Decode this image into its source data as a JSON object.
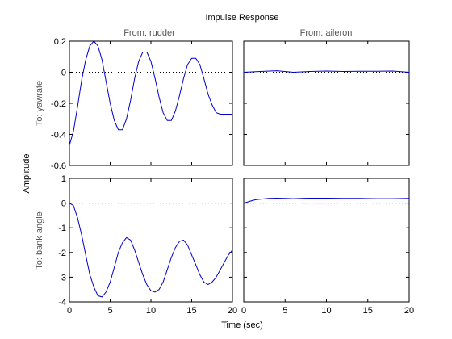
{
  "chart_data": {
    "type": "line",
    "title": "Impulse Response",
    "xlabel": "Time (sec)",
    "ylabel": "Amplitude",
    "column_titles": [
      "From: rudder",
      "From: aileron"
    ],
    "row_titles": [
      "To: yawrate",
      "To: bank angle"
    ],
    "grid": false,
    "line_color": "#0000cc",
    "zero_line_style": "dotted",
    "xlim": [
      0,
      20
    ],
    "xticks": [
      0,
      5,
      10,
      15,
      20
    ],
    "rows": [
      {
        "ylim": [
          -0.6,
          0.2
        ],
        "yticks": [
          -0.6,
          -0.4,
          -0.2,
          0,
          0.2
        ],
        "ytick_labels": [
          "-0.6",
          "-0.4",
          "-0.2",
          "0",
          "0.2"
        ]
      },
      {
        "ylim": [
          -4,
          1
        ],
        "yticks": [
          -4,
          -3,
          -2,
          -1,
          0,
          1
        ],
        "ytick_labels": [
          "-4",
          "-3",
          "-2",
          "-1",
          "0",
          "1"
        ]
      }
    ],
    "panels": [
      {
        "name": "rudder-to-yawrate",
        "row": 0,
        "col": 0,
        "series": [
          {
            "x": [
              0,
              0.5,
              1,
              1.5,
              2,
              2.5,
              3,
              3.5,
              4,
              4.5,
              5,
              5.5,
              6,
              6.5,
              7,
              7.5,
              8,
              8.5,
              9,
              9.5,
              10,
              10.5,
              11,
              11.5,
              12,
              12.5,
              13,
              13.5,
              14,
              14.5,
              15,
              15.5,
              16,
              16.5,
              17,
              17.5,
              18,
              18.5,
              19,
              19.5,
              20
            ],
            "y": [
              -0.47,
              -0.38,
              -0.22,
              -0.05,
              0.08,
              0.17,
              0.2,
              0.17,
              0.08,
              -0.06,
              -0.2,
              -0.31,
              -0.37,
              -0.37,
              -0.3,
              -0.18,
              -0.04,
              0.07,
              0.13,
              0.13,
              0.07,
              -0.04,
              -0.16,
              -0.26,
              -0.31,
              -0.31,
              -0.25,
              -0.15,
              -0.04,
              0.05,
              0.09,
              0.09,
              0.05,
              -0.04,
              -0.14,
              -0.21,
              -0.26,
              -0.27,
              -0.27,
              -0.27,
              -0.27
            ]
          }
        ]
      },
      {
        "name": "aileron-to-yawrate",
        "row": 0,
        "col": 1,
        "series": [
          {
            "x": [
              0,
              2,
              4,
              6,
              8,
              10,
              12,
              14,
              16,
              18,
              20
            ],
            "y": [
              0.0,
              0.005,
              0.01,
              0.0,
              0.005,
              0.008,
              0.005,
              0.006,
              0.007,
              0.008,
              0.0
            ]
          }
        ]
      },
      {
        "name": "rudder-to-bank-angle",
        "row": 1,
        "col": 0,
        "series": [
          {
            "x": [
              0,
              0.5,
              1,
              1.5,
              2,
              2.5,
              3,
              3.5,
              4,
              4.5,
              5,
              5.5,
              6,
              6.5,
              7,
              7.5,
              8,
              8.5,
              9,
              9.5,
              10,
              10.5,
              11,
              11.5,
              12,
              12.5,
              13,
              13.5,
              14,
              14.5,
              15,
              15.5,
              16,
              16.5,
              17,
              17.5,
              18,
              18.5,
              19,
              19.5,
              20
            ],
            "y": [
              0,
              -0.1,
              -0.6,
              -1.3,
              -2.1,
              -2.9,
              -3.4,
              -3.75,
              -3.8,
              -3.6,
              -3.2,
              -2.6,
              -2.0,
              -1.6,
              -1.4,
              -1.5,
              -1.9,
              -2.4,
              -2.9,
              -3.3,
              -3.55,
              -3.6,
              -3.5,
              -3.2,
              -2.7,
              -2.2,
              -1.8,
              -1.55,
              -1.5,
              -1.7,
              -2.1,
              -2.5,
              -2.9,
              -3.2,
              -3.3,
              -3.2,
              -3.0,
              -2.7,
              -2.4,
              -2.1,
              -1.9
            ]
          }
        ]
      },
      {
        "name": "aileron-to-bank-angle",
        "row": 1,
        "col": 1,
        "series": [
          {
            "x": [
              0,
              0.5,
              1,
              1.5,
              2,
              3,
              4,
              5,
              6,
              7,
              8,
              9,
              10,
              12,
              14,
              16,
              18,
              20
            ],
            "y": [
              0,
              0.05,
              0.1,
              0.14,
              0.16,
              0.19,
              0.2,
              0.19,
              0.18,
              0.19,
              0.2,
              0.2,
              0.2,
              0.19,
              0.19,
              0.18,
              0.18,
              0.19
            ]
          }
        ]
      }
    ]
  }
}
